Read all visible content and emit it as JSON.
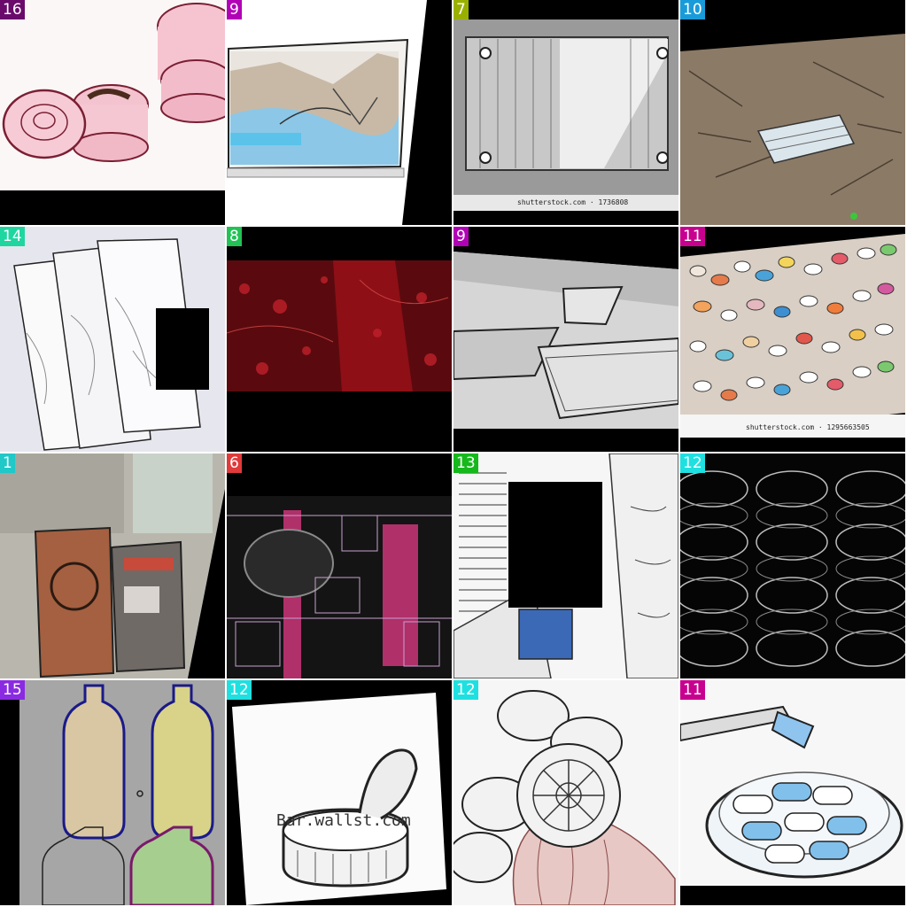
{
  "tiles": [
    {
      "label": "16",
      "badge_color": "#6a0b6c",
      "subject": "pink-containers"
    },
    {
      "label": "9",
      "badge_color": "#b100b6",
      "subject": "laptop-screen"
    },
    {
      "label": "7",
      "badge_color": "#9ab000",
      "subject": "metal-plate"
    },
    {
      "label": "10",
      "badge_color": "#1a9bd9",
      "subject": "mask-on-ground"
    },
    {
      "label": "14",
      "badge_color": "#1fd6a0",
      "subject": "plastic-bags"
    },
    {
      "label": "8",
      "badge_color": "#22c255",
      "subject": "red-texture"
    },
    {
      "label": "9",
      "badge_color": "#b100b6",
      "subject": "glass-shelf"
    },
    {
      "label": "11",
      "badge_color": "#c8008f",
      "subject": "pills-pile"
    },
    {
      "label": "1",
      "badge_color": "#20c8c8",
      "subject": "packaged-boxes"
    },
    {
      "label": "6",
      "badge_color": "#e03a3a",
      "subject": "circuit-board"
    },
    {
      "label": "13",
      "badge_color": "#16b81c",
      "subject": "newspaper"
    },
    {
      "label": "12",
      "badge_color": "#1fe0e0",
      "subject": "stacked-rings"
    },
    {
      "label": "15",
      "badge_color": "#8a2be2",
      "subject": "bottles"
    },
    {
      "label": "12",
      "badge_color": "#1fe0e0",
      "subject": "tin-can"
    },
    {
      "label": "12",
      "badge_color": "#1fe0e0",
      "subject": "coins-on-hand"
    },
    {
      "label": "11",
      "badge_color": "#c8008f",
      "subject": "capsules-bowl"
    }
  ],
  "watermarks": {
    "tile3": "shutterstock.com · 1736808",
    "tile8": "shutterstock.com · 1295663505",
    "tile14": "Bar.wallst.com"
  }
}
